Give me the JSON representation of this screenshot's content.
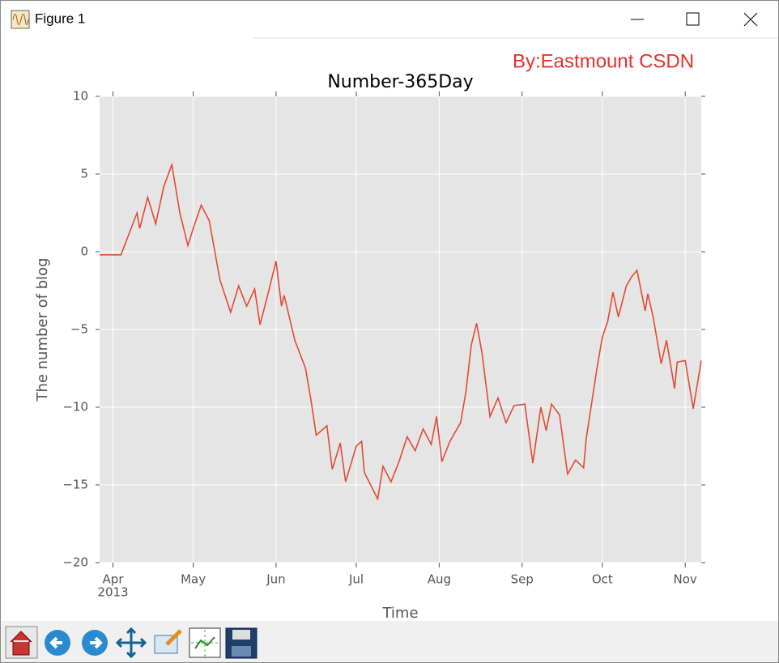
{
  "window": {
    "title": "Figure 1"
  },
  "watermark": "By:Eastmount CSDN",
  "chart_data": {
    "type": "line",
    "title": "Number-365Day",
    "x_label": "Time",
    "y_label": "The number of blog",
    "color": "#e24a33",
    "grid": true,
    "x": [
      "2013-03-27",
      "2013-04-04",
      "2013-04-10",
      "2013-04-11",
      "2013-04-14",
      "2013-04-17",
      "2013-04-20",
      "2013-04-23",
      "2013-04-26",
      "2013-04-29",
      "2013-05-01",
      "2013-05-04",
      "2013-05-07",
      "2013-05-11",
      "2013-05-15",
      "2013-05-18",
      "2013-05-21",
      "2013-05-24",
      "2013-05-26",
      "2013-05-29",
      "2013-06-01",
      "2013-06-03",
      "2013-06-04",
      "2013-06-08",
      "2013-06-12",
      "2013-06-14",
      "2013-06-16",
      "2013-06-20",
      "2013-06-22",
      "2013-06-25",
      "2013-06-27",
      "2013-07-01",
      "2013-07-03",
      "2013-07-04",
      "2013-07-09",
      "2013-07-11",
      "2013-07-14",
      "2013-07-17",
      "2013-07-20",
      "2013-07-23",
      "2013-07-26",
      "2013-07-29",
      "2013-07-31",
      "2013-08-02",
      "2013-08-05",
      "2013-08-09",
      "2013-08-11",
      "2013-08-13",
      "2013-08-15",
      "2013-08-17",
      "2013-08-20",
      "2013-08-23",
      "2013-08-26",
      "2013-08-29",
      "2013-09-02",
      "2013-09-05",
      "2013-09-08",
      "2013-09-10",
      "2013-09-12",
      "2013-09-15",
      "2013-09-18",
      "2013-09-21",
      "2013-09-24",
      "2013-09-25",
      "2013-09-29",
      "2013-10-01",
      "2013-10-03",
      "2013-10-05",
      "2013-10-07",
      "2013-10-10",
      "2013-10-12",
      "2013-10-14",
      "2013-10-17",
      "2013-10-18",
      "2013-10-20",
      "2013-10-23",
      "2013-10-25",
      "2013-10-28",
      "2013-10-29",
      "2013-11-01",
      "2013-11-04",
      "2013-11-07"
    ],
    "values": [
      -0.2,
      -0.2,
      2.5,
      1.5,
      3.5,
      1.8,
      4.2,
      5.6,
      2.5,
      0.4,
      1.5,
      3.0,
      2.0,
      -1.8,
      -3.9,
      -2.2,
      -3.5,
      -2.4,
      -4.7,
      -2.7,
      -0.6,
      -3.5,
      -2.8,
      -5.7,
      -7.5,
      -9.5,
      -11.8,
      -11.2,
      -14.0,
      -12.3,
      -14.8,
      -12.5,
      -12.2,
      -14.2,
      -15.9,
      -13.8,
      -14.8,
      -13.5,
      -11.9,
      -12.8,
      -11.4,
      -12.4,
      -10.6,
      -13.5,
      -12.2,
      -11.0,
      -9.0,
      -6.0,
      -4.6,
      -6.5,
      -10.6,
      -9.4,
      -11.0,
      -9.9,
      -9.8,
      -13.6,
      -10.0,
      -11.5,
      -9.8,
      -10.5,
      -14.3,
      -13.4,
      -13.9,
      -12.0,
      -7.5,
      -5.5,
      -4.5,
      -2.6,
      -4.2,
      -2.2,
      -1.6,
      -1.2,
      -3.8,
      -2.7,
      -4.2,
      -7.2,
      -5.7,
      -8.8,
      -7.1,
      -7.0,
      -10.1,
      -7.0
    ],
    "xlim": [
      "2013-03-27",
      "2013-11-07"
    ],
    "xticks": [
      {
        "value": "2013-04-01",
        "label": "Apr"
      },
      {
        "value": "2013-05-01",
        "label": "May"
      },
      {
        "value": "2013-06-01",
        "label": "Jun"
      },
      {
        "value": "2013-07-01",
        "label": "Jul"
      },
      {
        "value": "2013-08-01",
        "label": "Aug"
      },
      {
        "value": "2013-09-01",
        "label": "Sep"
      },
      {
        "value": "2013-10-01",
        "label": "Oct"
      },
      {
        "value": "2013-11-01",
        "label": "Nov"
      }
    ],
    "x_year_label": "2013",
    "ylim": [
      -20,
      10
    ],
    "yticks": [
      {
        "value": -20,
        "label": "−20"
      },
      {
        "value": -15,
        "label": "−15"
      },
      {
        "value": -10,
        "label": "−10"
      },
      {
        "value": -5,
        "label": "−5"
      },
      0,
      5,
      10
    ]
  }
}
